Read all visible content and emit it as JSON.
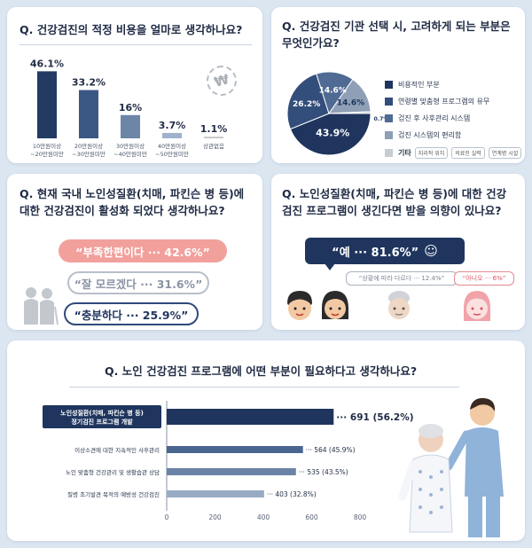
{
  "q1": {
    "title": "Q. 건강검진의 적정 비용을 얼마로 생각하나요?",
    "stamp": "₩",
    "chart_data": {
      "type": "bar",
      "categories": [
        [
          "10만원이상",
          "~20만원미만"
        ],
        [
          "20만원이상",
          "~30만원미만"
        ],
        [
          "30만원이상",
          "~40만원미만"
        ],
        [
          "40만원이상",
          "~50만원미만"
        ],
        [
          "상관없음"
        ]
      ],
      "values": [
        46.1,
        33.2,
        16,
        3.7,
        1.1
      ],
      "value_labels": [
        "46.1%",
        "33.2%",
        "16%",
        "3.7%",
        "1.1%"
      ],
      "colors": [
        "#233a63",
        "#3b5784",
        "#6d86a8",
        "#9fb2c9",
        "#c3c4c6"
      ],
      "ylim": [
        0,
        50
      ]
    }
  },
  "q2": {
    "title_line1": "Q. 건강검진 기관 선택 시, 고려하게 되는 부분은",
    "title_line2": "무엇인가요?",
    "chart_data": {
      "type": "pie",
      "slices": [
        {
          "label": "비용적인 부분",
          "value": 43.9,
          "text": "43.9%",
          "color": "#1f355e"
        },
        {
          "label": "연령별 맞춤형 프로그램의 유무",
          "value": 26.2,
          "text": "26.2%",
          "color": "#334e7a"
        },
        {
          "label": "검진 후 사후관리 시스템",
          "value": 14.6,
          "text": "14.6%",
          "color": "#4f6a93"
        },
        {
          "label": "검진 시스템의 편리함",
          "value": 14.6,
          "text": "14.6%",
          "color": "#8e9fb6"
        },
        {
          "label": "기타",
          "value": 0.7,
          "text": "0.7%",
          "color": "#c7ccd3"
        }
      ],
      "etc_chips": [
        "지리적 위치",
        "의료진 실력",
        "연계병 시설"
      ]
    }
  },
  "q3": {
    "title_line1": "Q. 현재 국내 노인성질환(치매, 파킨슨 병 등)에",
    "title_line2": "대한 건강검진이 활성화 되었다 생각하나요?",
    "chart_data": {
      "type": "table",
      "answers": [
        {
          "label": "“부족한편이다 ··· 42.6%”",
          "value": 42.6
        },
        {
          "label": "“잘 모르겠다 ··· 31.6%”",
          "value": 31.6
        },
        {
          "label": "“충분하다 ··· 25.9%”",
          "value": 25.9
        }
      ]
    }
  },
  "q4": {
    "title_line1": "Q. 노인성질환(치매, 파킨슨 병 등)에 대한 건강",
    "title_line2": "검진 프로그램이 생긴다면 받을 의향이 있나요?",
    "chart_data": {
      "type": "table",
      "answers": [
        {
          "label": "“예 ··· 81.6%”",
          "value": 81.6
        },
        {
          "label": "“상황에 따라 다르다 ··· 12.4%”",
          "value": 12.4
        },
        {
          "label": "“아니오 ··· 6%”",
          "value": 6
        }
      ]
    },
    "smile": "☺"
  },
  "q5": {
    "title": "Q. 노인 건강검진 프로그램에 어떤 부분이 필요하다고 생각하나요?",
    "chart_data": {
      "type": "bar",
      "orientation": "horizontal",
      "categories": [
        [
          "노인성질환(치매, 파킨슨 병 등)",
          "정기검진 프로그램 개발"
        ],
        [
          "이상소견에 대한 지속적인 사후관리"
        ],
        [
          "노인 맞춤형 건강관리 및 생활습관 상담"
        ],
        [
          "질병 조기발견 목적의 예방성 건강검진"
        ]
      ],
      "values": [
        691,
        564,
        535,
        403
      ],
      "value_labels": [
        "··· 691 (56.2%)",
        "··· 564 (45.9%)",
        "··· 535 (43.5%)",
        "··· 403 (32.8%)"
      ],
      "colors": [
        "#1f355e",
        "#4a6590",
        "#6b83a6",
        "#98abc3"
      ],
      "xlim": [
        0,
        800
      ],
      "xticks": [
        "0",
        "200",
        "400",
        "600",
        "800"
      ]
    }
  }
}
